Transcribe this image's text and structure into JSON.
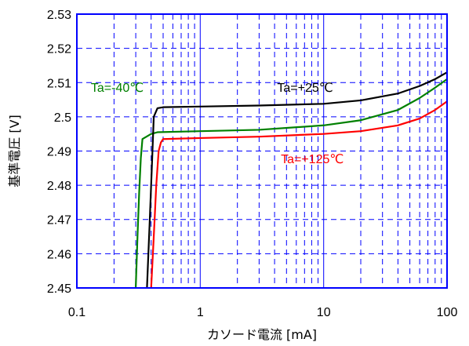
{
  "chart_data": {
    "type": "line",
    "xlabel": "カソード電流 [mA]",
    "ylabel": "基準電圧 [V]",
    "x_scale": "log",
    "xlim": [
      0.1,
      100
    ],
    "ylim": [
      2.45,
      2.53
    ],
    "x_ticks": [
      0.1,
      1,
      10,
      100
    ],
    "x_tick_labels": [
      "0.1",
      "1",
      "10",
      "100"
    ],
    "y_ticks": [
      2.45,
      2.46,
      2.47,
      2.48,
      2.49,
      2.5,
      2.51,
      2.52,
      2.53
    ],
    "y_tick_labels": [
      "2.45",
      "2.46",
      "2.47",
      "2.48",
      "2.49",
      "2.5",
      "2.51",
      "2.52",
      "2.53"
    ],
    "grid": true,
    "frame_color": "#0000ff",
    "grid_color": "#0000ff",
    "series": [
      {
        "name": "Ta=-40℃",
        "color": "#008000",
        "points": [
          [
            0.3,
            2.45
          ],
          [
            0.31,
            2.465
          ],
          [
            0.32,
            2.478
          ],
          [
            0.33,
            2.488
          ],
          [
            0.34,
            2.4935
          ],
          [
            0.4,
            2.495
          ],
          [
            0.45,
            2.4955
          ],
          [
            1,
            2.4958
          ],
          [
            3,
            2.4962
          ],
          [
            10,
            2.4975
          ],
          [
            20,
            2.499
          ],
          [
            40,
            2.502
          ],
          [
            60,
            2.5055
          ],
          [
            80,
            2.5085
          ],
          [
            100,
            2.511
          ]
        ]
      },
      {
        "name": "Ta=+25℃",
        "color": "#000000",
        "points": [
          [
            0.37,
            2.45
          ],
          [
            0.39,
            2.47
          ],
          [
            0.41,
            2.49
          ],
          [
            0.42,
            2.5
          ],
          [
            0.45,
            2.5025
          ],
          [
            0.5,
            2.5028
          ],
          [
            1,
            2.503
          ],
          [
            3,
            2.5033
          ],
          [
            10,
            2.5038
          ],
          [
            20,
            2.5048
          ],
          [
            40,
            2.5068
          ],
          [
            60,
            2.509
          ],
          [
            80,
            2.511
          ],
          [
            100,
            2.513
          ]
        ]
      },
      {
        "name": "Ta=+125℃",
        "color": "#ff0000",
        "points": [
          [
            0.4,
            2.45
          ],
          [
            0.42,
            2.465
          ],
          [
            0.44,
            2.48
          ],
          [
            0.46,
            2.49
          ],
          [
            0.48,
            2.4925
          ],
          [
            0.5,
            2.4935
          ],
          [
            1,
            2.4938
          ],
          [
            3,
            2.4942
          ],
          [
            10,
            2.495
          ],
          [
            20,
            2.4958
          ],
          [
            40,
            2.4975
          ],
          [
            60,
            2.4995
          ],
          [
            80,
            2.502
          ],
          [
            100,
            2.5045
          ]
        ]
      }
    ],
    "annotations": [
      {
        "text": "Ta=-40℃",
        "series": 0,
        "x": 0.13,
        "y": 2.5073
      },
      {
        "text": "Ta=+25℃",
        "series": 1,
        "x": 4.2,
        "y": 2.5073
      },
      {
        "text": "Ta=+125℃",
        "series": 2,
        "x": 4.5,
        "y": 2.4864
      }
    ]
  }
}
